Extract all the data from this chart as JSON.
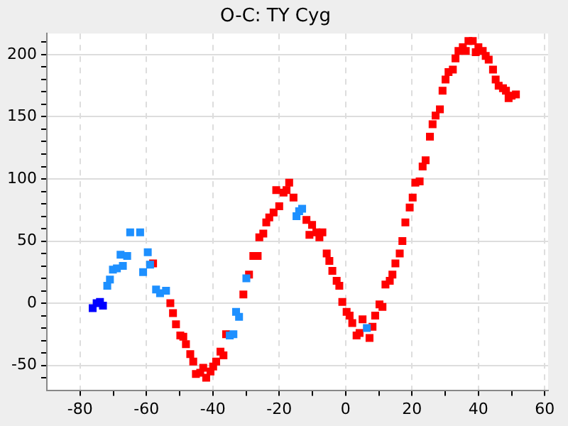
{
  "chart_data": {
    "type": "scatter",
    "title": "O-C: TY Cyg",
    "marker": "square",
    "grid": true,
    "legend": false,
    "xlim": [
      -90,
      61
    ],
    "xticks": [
      -80,
      {
        "value": -70,
        "label": null
      },
      -60,
      {
        "value": -50,
        "label": null
      },
      -40,
      {
        "value": -30,
        "label": null
      },
      -20,
      {
        "value": -10,
        "label": null
      },
      0,
      {
        "value": 10,
        "label": null
      },
      20,
      {
        "value": 30,
        "label": null
      },
      40,
      {
        "value": 50,
        "label": null
      },
      60
    ],
    "ylim": [
      -70,
      217
    ],
    "yticks": [
      {
        "value": -60,
        "label": null
      },
      -50,
      {
        "value": -40,
        "label": null
      },
      {
        "value": -30,
        "label": null
      },
      {
        "value": -20,
        "label": null
      },
      {
        "value": -10,
        "label": null
      },
      0,
      {
        "value": 10,
        "label": null
      },
      {
        "value": 20,
        "label": null
      },
      {
        "value": 30,
        "label": null
      },
      {
        "value": 40,
        "label": null
      },
      50,
      {
        "value": 60,
        "label": null
      },
      {
        "value": 70,
        "label": null
      },
      {
        "value": 80,
        "label": null
      },
      {
        "value": 90,
        "label": null
      },
      100,
      {
        "value": 110,
        "label": null
      },
      {
        "value": 120,
        "label": null
      },
      {
        "value": 130,
        "label": null
      },
      {
        "value": 140,
        "label": null
      },
      150,
      {
        "value": 160,
        "label": null
      },
      {
        "value": 170,
        "label": null
      },
      {
        "value": 180,
        "label": null
      },
      {
        "value": 190,
        "label": null
      },
      200,
      {
        "value": 210,
        "label": null
      }
    ],
    "series": [
      {
        "color": "#0000ff",
        "x": [
          -76.2,
          -75.0,
          -74.0,
          -73.1
        ],
        "values": [
          -4,
          0,
          1,
          -2
        ]
      },
      {
        "color": "#1e90ff",
        "x": [
          -71.8,
          -71.0,
          -70.1,
          -68.9,
          -67.8,
          -67.1,
          -65.8,
          -64.9,
          -61.9,
          -61.0,
          -59.6,
          -58.9,
          -57.1,
          -55.9,
          -54.1,
          -34.9,
          -33.8,
          -33.0,
          -32.1,
          -29.9,
          -14.8,
          -14.0,
          -13.1,
          6.4
        ],
        "values": [
          14,
          19,
          27,
          28,
          39,
          30,
          38,
          57,
          57,
          25,
          41,
          31,
          11,
          8,
          10,
          -26,
          -25,
          -7,
          -11,
          20,
          70,
          74,
          76,
          -20
        ]
      },
      {
        "color": "#ff0000",
        "x": [
          -58.0,
          -52.8,
          -52.0,
          -51.1,
          -49.8,
          -48.9,
          -48.1,
          -46.8,
          -45.9,
          -45.1,
          -43.8,
          -42.9,
          -42.0,
          -40.7,
          -39.9,
          -39.0,
          -37.7,
          -36.8,
          -36.0,
          -30.8,
          -29.1,
          -27.8,
          -26.5,
          -26.0,
          -24.8,
          -23.9,
          -23.0,
          -21.7,
          -20.9,
          -20.0,
          -18.7,
          -17.8,
          -17.0,
          -15.7,
          -11.8,
          -10.9,
          -10.1,
          -8.8,
          -7.9,
          -7.0,
          -5.7,
          -4.9,
          -4.0,
          -2.7,
          -1.9,
          -1.0,
          0.3,
          1.2,
          2.0,
          3.3,
          4.2,
          5.1,
          7.2,
          8.1,
          8.9,
          10.2,
          11.1,
          12.0,
          13.3,
          14.1,
          15.0,
          16.3,
          17.1,
          18.0,
          19.3,
          20.2,
          21.0,
          22.3,
          23.2,
          24.1,
          25.4,
          26.2,
          27.1,
          28.4,
          29.2,
          30.1,
          31.0,
          32.3,
          33.1,
          34.0,
          35.3,
          36.2,
          37.0,
          38.3,
          39.2,
          40.0,
          41.3,
          42.2,
          43.1,
          44.4,
          45.2,
          46.1,
          47.4,
          48.3,
          49.1,
          50.0,
          51.3
        ],
        "values": [
          32,
          0,
          -8,
          -17,
          -26,
          -27,
          -33,
          -41,
          -47,
          -57,
          -56,
          -52,
          -60,
          -55,
          -51,
          -47,
          -39,
          -42,
          -25,
          7,
          23,
          38,
          38,
          53,
          56,
          65,
          69,
          73,
          91,
          78,
          89,
          91,
          97,
          85,
          67,
          55,
          63,
          57,
          53,
          57,
          40,
          34,
          26,
          18,
          14,
          1,
          -7,
          -10,
          -16,
          -26,
          -24,
          -13,
          -28,
          -19,
          -10,
          -1,
          -3,
          15,
          18,
          23,
          32,
          40,
          50,
          65,
          77,
          85,
          97,
          98,
          110,
          115,
          134,
          144,
          151,
          156,
          171,
          180,
          186,
          188,
          197,
          203,
          206,
          203,
          211,
          211,
          202,
          206,
          203,
          199,
          196,
          188,
          180,
          175,
          173,
          171,
          165,
          167,
          168
        ]
      }
    ]
  }
}
